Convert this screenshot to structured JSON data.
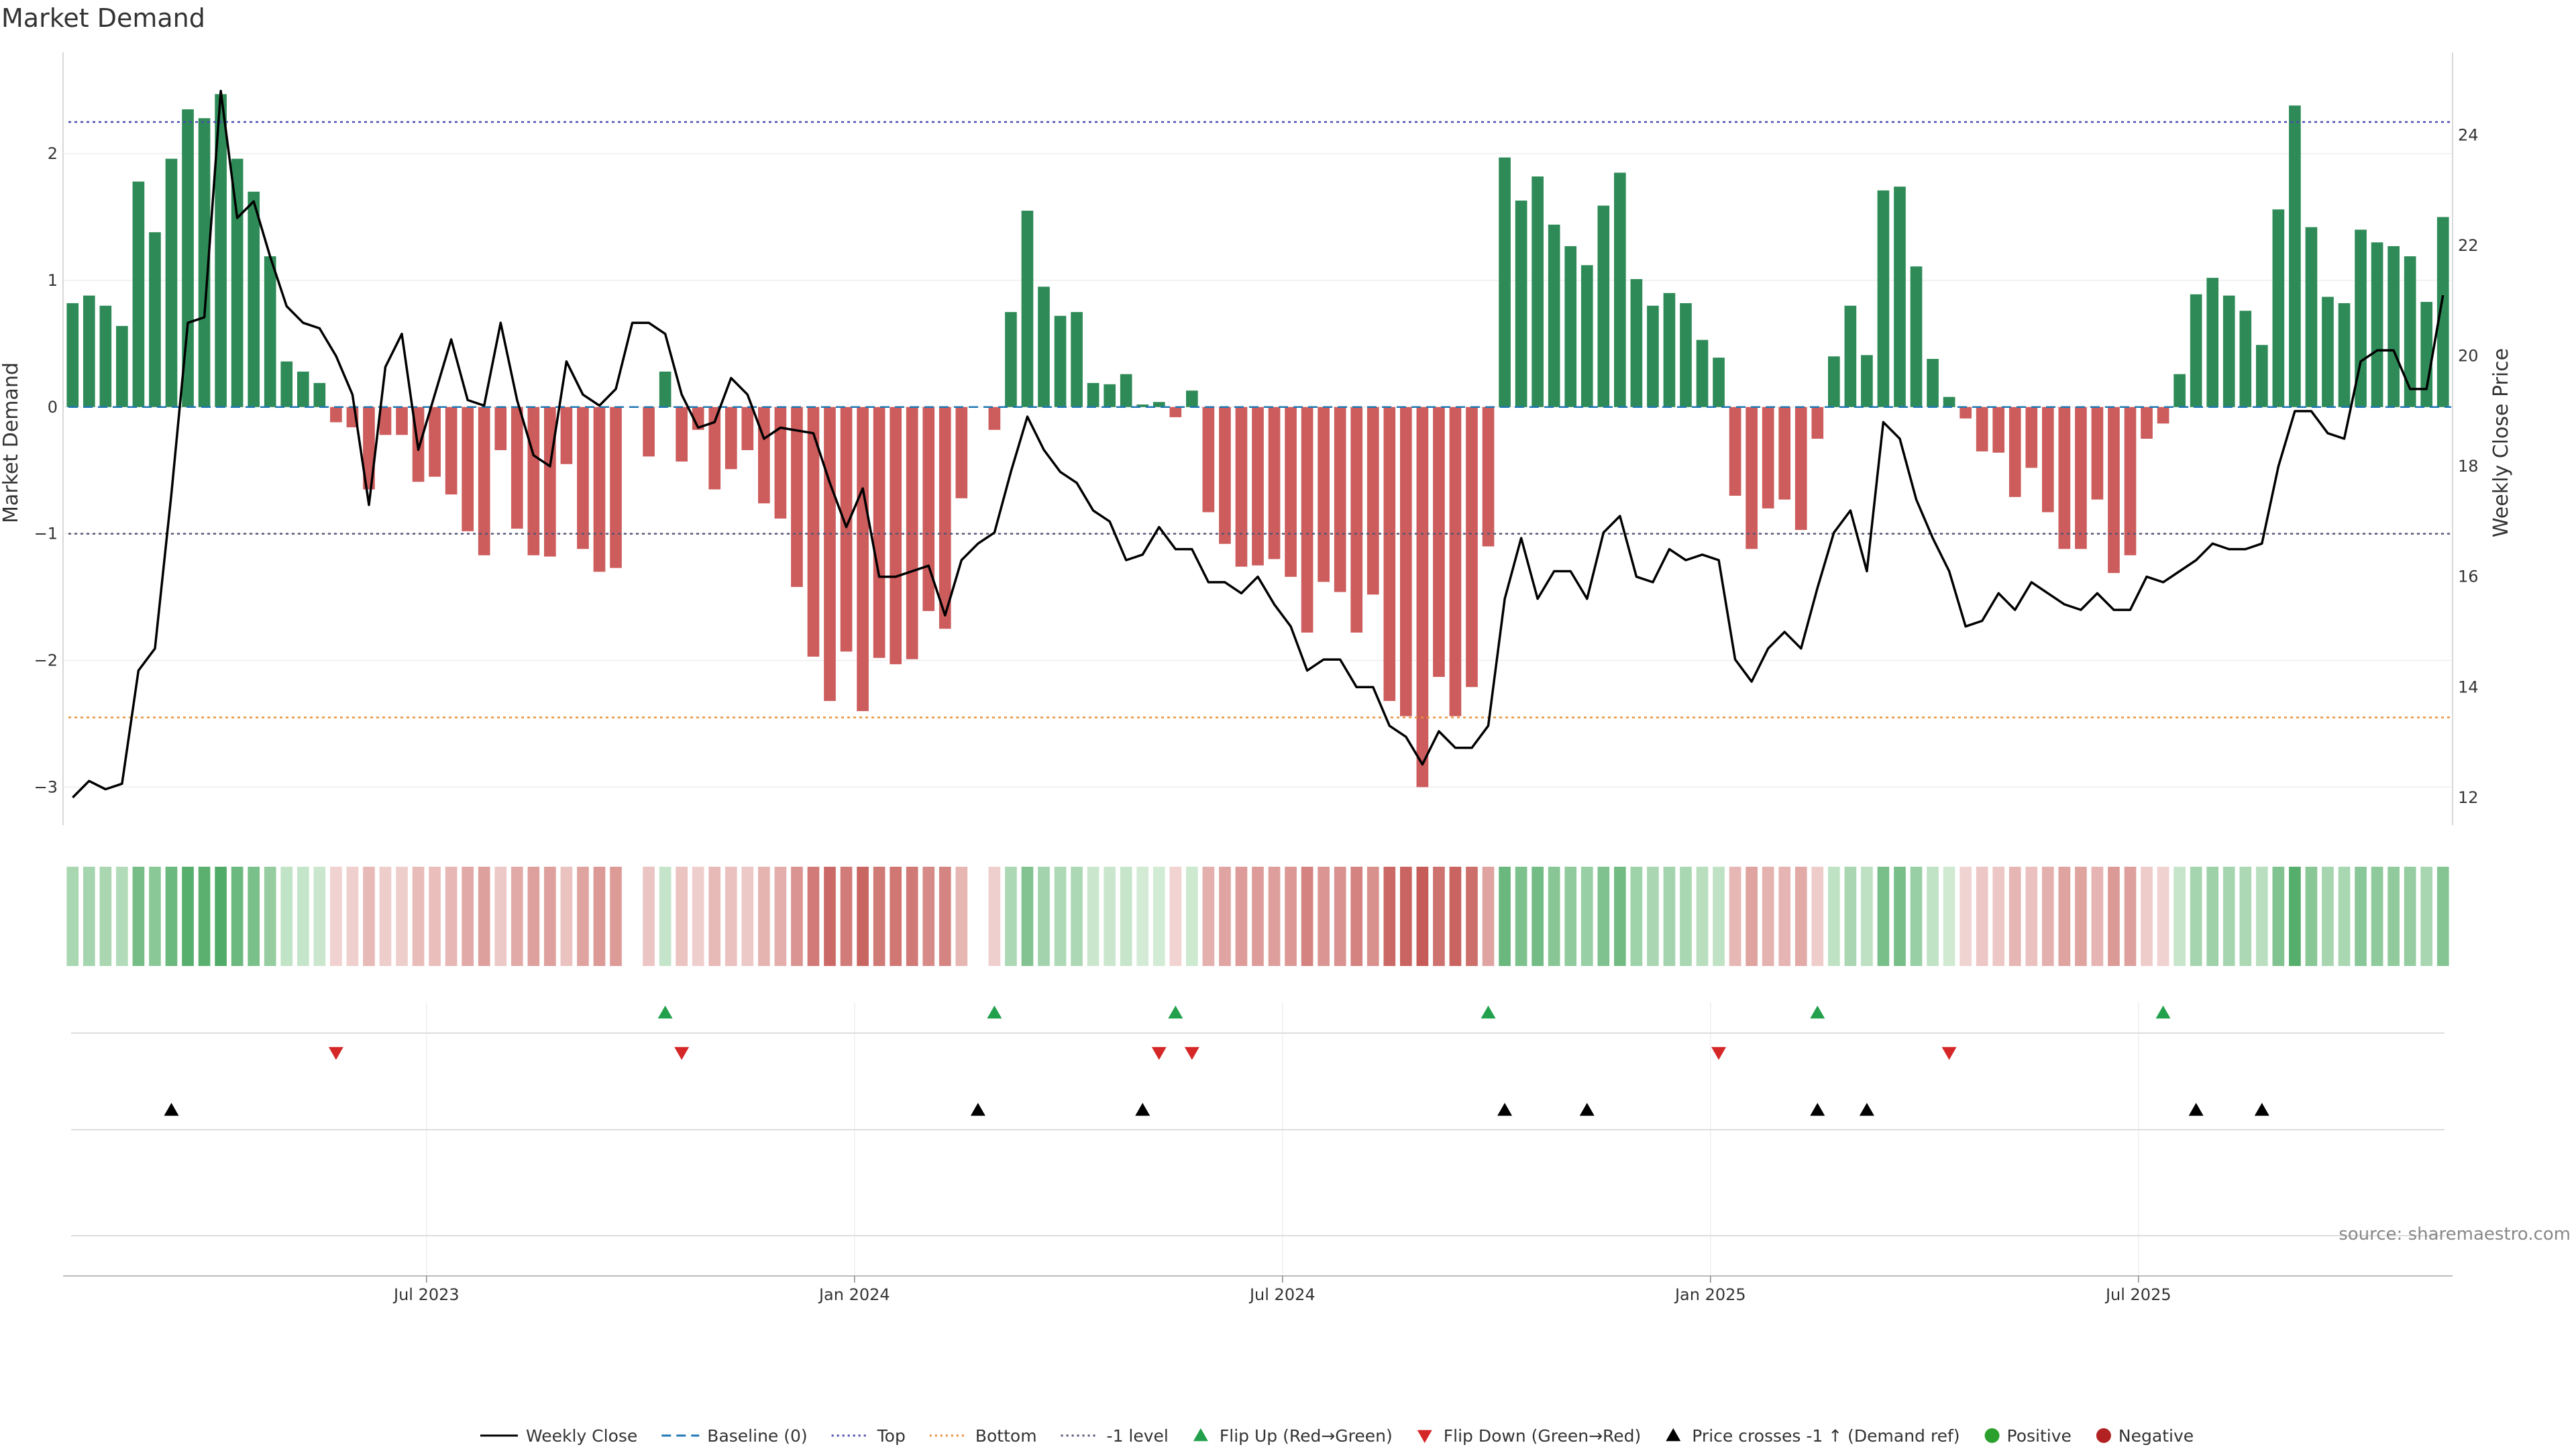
{
  "title": "Market Demand",
  "source": "source: sharemaestro.com",
  "axes": {
    "left_label": "Market Demand",
    "right_label": "Weekly Close Price",
    "left_ticks": [
      "2",
      "1",
      "0",
      "−1",
      "−2",
      "−3"
    ],
    "right_ticks": [
      "24",
      "22",
      "20",
      "18",
      "16",
      "14",
      "12"
    ],
    "x_ticks": [
      "Jul 2023",
      "Jan 2024",
      "Jul 2024",
      "Jan 2025",
      "Jul 2025"
    ]
  },
  "legend": [
    {
      "label": "Weekly Close",
      "kind": "solid-line",
      "color": "#000000"
    },
    {
      "label": "Baseline (0)",
      "kind": "dash-line",
      "color": "#1f77b4"
    },
    {
      "label": "Top",
      "kind": "dot-line",
      "color": "#4b4bb0"
    },
    {
      "label": "Bottom",
      "kind": "dot-line",
      "color": "#e8913a"
    },
    {
      "label": "-1 level",
      "kind": "dot-line",
      "color": "#555577"
    },
    {
      "label": "Flip Up (Red→Green)",
      "kind": "tri-up",
      "color": "#22a04b"
    },
    {
      "label": "Flip Down (Green→Red)",
      "kind": "tri-down",
      "color": "#d62728"
    },
    {
      "label": "Price crosses -1 ↑ (Demand ref)",
      "kind": "tri-up",
      "color": "#000000"
    },
    {
      "label": "Positive",
      "kind": "circle",
      "color": "#2ca02c"
    },
    {
      "label": "Negative",
      "kind": "circle",
      "color": "#b22222"
    }
  ],
  "colors": {
    "positive": "#2e8b57",
    "negative": "#cd5c5c",
    "top": "#4b4bb0",
    "bottom": "#e8913a",
    "minus_one": "#555577",
    "baseline": "#1f77b4",
    "price": "#000000"
  },
  "chart_data": {
    "type": "bar",
    "title": "Market Demand",
    "xlabel": "",
    "ylabel": "Market Demand",
    "y2label": "Weekly Close Price",
    "ylim": [
      -3.3,
      2.8
    ],
    "y2lim": [
      11.5,
      25.5
    ],
    "reference_lines": {
      "top": 2.25,
      "bottom": -2.45,
      "minus_one": -1.0,
      "baseline": 0
    },
    "start_week": "2023-01-09",
    "demand": [
      0.82,
      0.88,
      0.8,
      0.64,
      1.78,
      1.38,
      1.96,
      2.35,
      2.28,
      2.47,
      1.96,
      1.7,
      1.19,
      0.36,
      0.28,
      0.19,
      -0.12,
      -0.16,
      -0.65,
      -0.22,
      -0.22,
      -0.59,
      -0.55,
      -0.69,
      -0.98,
      -1.17,
      -0.34,
      -0.96,
      -1.17,
      -1.18,
      -0.45,
      -1.12,
      -1.3,
      -1.27,
      0.0,
      -0.39,
      0.28,
      -0.43,
      -0.18,
      -0.65,
      -0.49,
      -0.34,
      -0.76,
      -0.88,
      -1.42,
      -1.97,
      -2.32,
      -1.93,
      -2.4,
      -1.98,
      -2.03,
      -1.99,
      -1.61,
      -1.75,
      -0.72,
      0.0,
      -0.18,
      0.75,
      1.55,
      0.95,
      0.72,
      0.75,
      0.19,
      0.18,
      0.26,
      0.02,
      0.04,
      -0.08,
      0.13,
      -0.83,
      -1.08,
      -1.26,
      -1.25,
      -1.2,
      -1.34,
      -1.78,
      -1.38,
      -1.46,
      -1.78,
      -1.48,
      -2.32,
      -2.44,
      -3.0,
      -2.13,
      -2.44,
      -2.21,
      -1.1,
      1.97,
      1.63,
      1.82,
      1.44,
      1.27,
      1.12,
      1.59,
      1.85,
      1.01,
      0.8,
      0.9,
      0.82,
      0.53,
      0.39,
      -0.7,
      -1.12,
      -0.8,
      -0.73,
      -0.97,
      -0.25,
      0.4,
      0.8,
      0.41,
      1.71,
      1.74,
      1.11,
      0.38,
      0.08,
      -0.09,
      -0.35,
      -0.36,
      -0.71,
      -0.48,
      -0.83,
      -1.12,
      -1.12,
      -0.73,
      -1.31,
      -1.17,
      -0.25,
      -0.13,
      0.26,
      0.89,
      1.02,
      0.88,
      0.76,
      0.49,
      1.56,
      2.38,
      1.42,
      0.87,
      0.82,
      1.4,
      1.3,
      1.27,
      1.19,
      0.83,
      1.5
    ],
    "price": [
      12.0,
      12.3,
      12.15,
      12.25,
      14.3,
      14.7,
      17.5,
      20.6,
      20.7,
      24.8,
      22.5,
      22.8,
      21.8,
      20.9,
      20.6,
      20.5,
      20.0,
      19.3,
      17.3,
      19.8,
      20.4,
      18.3,
      19.3,
      20.3,
      19.2,
      19.1,
      20.6,
      19.2,
      18.2,
      18.0,
      19.9,
      19.3,
      19.1,
      19.4,
      20.6,
      20.6,
      20.4,
      19.3,
      18.7,
      18.8,
      19.6,
      19.3,
      18.5,
      18.7,
      18.65,
      18.6,
      17.7,
      16.9,
      17.6,
      16.0,
      16.0,
      16.1,
      16.2,
      15.3,
      16.3,
      16.6,
      16.8,
      17.9,
      18.9,
      18.3,
      17.9,
      17.7,
      17.2,
      17.0,
      16.3,
      16.4,
      16.9,
      16.5,
      16.5,
      15.9,
      15.9,
      15.7,
      16.0,
      15.5,
      15.1,
      14.3,
      14.5,
      14.5,
      14.0,
      14.0,
      13.3,
      13.1,
      12.6,
      13.2,
      12.9,
      12.9,
      13.3,
      15.6,
      16.7,
      15.6,
      16.1,
      16.1,
      15.6,
      16.8,
      17.1,
      16.0,
      15.9,
      16.5,
      16.3,
      16.4,
      16.3,
      14.5,
      14.1,
      14.7,
      15.0,
      14.7,
      15.8,
      16.8,
      17.2,
      16.1,
      18.8,
      18.5,
      17.4,
      16.7,
      16.1,
      15.1,
      15.2,
      15.7,
      15.4,
      15.9,
      15.7,
      15.5,
      15.4,
      15.7,
      15.4,
      15.4,
      16.0,
      15.9,
      16.1,
      16.3,
      16.6,
      16.5,
      16.5,
      16.6,
      18.0,
      19.0,
      19.0,
      18.6,
      18.5,
      19.9,
      20.1,
      20.1,
      19.4,
      19.4,
      21.1
    ],
    "flip_up_weeks": [
      36,
      56,
      67,
      86,
      106,
      127
    ],
    "flip_down_weeks": [
      16,
      37,
      66,
      68,
      100,
      114
    ],
    "price_cross_weeks": [
      6,
      55,
      65,
      87,
      92,
      106,
      109,
      129,
      133
    ],
    "x_tick_weeks": [
      22,
      48,
      74,
      100,
      126
    ],
    "x_ticks": [
      "Jul 2023",
      "Jan 2024",
      "Jul 2024",
      "Jan 2025",
      "Jul 2025"
    ]
  }
}
